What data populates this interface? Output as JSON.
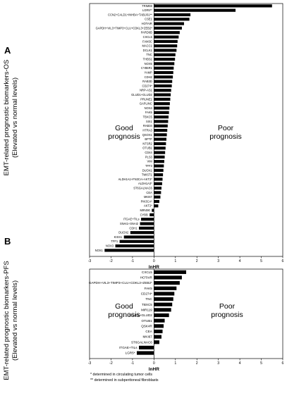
{
  "panels": {
    "a": {
      "letter": "A",
      "ylabel_line1": "EMT-related prognostic biomarkers-OS",
      "ylabel_line2": "(Elevated vs normal levels)"
    },
    "b": {
      "letter": "B",
      "ylabel_line1": "EMT-related prognostic biomarkers-PFS",
      "ylabel_line2": "(Elevated vs normal levels)"
    }
  },
  "footnotes": [
    "* determined in circulating tumor cells",
    "** determined in subperitoneal fibroblasts"
  ],
  "chart_data": [
    {
      "type": "bar",
      "orientation": "horizontal",
      "xlabel": "lnHR",
      "ylabel": "EMT-related prognostic biomarkers-OS (Elevated vs normal levels)",
      "xlim": [
        -3,
        6
      ],
      "xticks": [
        -3,
        -2,
        -1,
        0,
        1,
        2,
        3,
        4,
        5,
        6
      ],
      "annotations": {
        "left": [
          "Good",
          "prognosis"
        ],
        "right": [
          "Poor",
          "prognosis"
        ]
      },
      "categories": [
        "TRIM59",
        "LGR5**",
        "CCN2+CALD1+INHBA+TAB1/61**",
        "CSE1",
        "HOTAIR",
        "GAPDH+VIL3+TIMP3+CLU+CDKL3+ZEB2*",
        "PARD6B",
        "CXCL5",
        "FAM3C",
        "MACC1",
        "DCLK1",
        "TNC",
        "THBS1",
        "NOX5",
        "CYB5R1",
        "YAMP",
        "CDH2",
        "RAB3D",
        "CD274*",
        "NRP-AS1",
        "GLUD1+GLUD2",
        "PRUNE1",
        "GAPLINC",
        "NOX4",
        "FAK5",
        "TBXC5",
        "SIX1",
        "RAB34",
        "HTRA3",
        "QSOX1",
        "BPTF",
        "NTSR2",
        "OTUB1",
        "CD44",
        "PLS3",
        "VIM",
        "TFF3",
        "DUOX1",
        "TWIST1",
        "ALDH1A1+FN3CA+AKT2*",
        "ALDH1A3*",
        "ST6GALNAC6",
        "CEA",
        "MKI67",
        "PIK3CA*",
        "AKT2*",
        "MIR490",
        "CYBB",
        "ITGAE+TILs",
        "SNAI1+SNAI2",
        "CDH1",
        "DUOX2",
        "KISS1",
        "TFF1",
        "NOX3",
        "NOX1"
      ],
      "values": [
        5.5,
        3.8,
        1.7,
        1.65,
        1.4,
        1.3,
        1.2,
        1.15,
        1.1,
        1.08,
        1.05,
        1.0,
        0.98,
        0.95,
        0.92,
        0.9,
        0.88,
        0.85,
        0.83,
        0.8,
        0.78,
        0.76,
        0.74,
        0.72,
        0.7,
        0.68,
        0.66,
        0.64,
        0.62,
        0.6,
        0.58,
        0.56,
        0.54,
        0.52,
        0.5,
        0.48,
        0.46,
        0.44,
        0.42,
        0.4,
        0.38,
        0.35,
        0.33,
        0.3,
        0.25,
        0.2,
        -0.1,
        -0.2,
        -0.6,
        -0.65,
        -0.7,
        -1.1,
        -1.4,
        -1.6,
        -1.8,
        -2.3
      ]
    },
    {
      "type": "bar",
      "orientation": "horizontal",
      "xlabel": "lnHR",
      "ylabel": "EMT-related prognostic biomarkers-PFS (Elevated vs normal levels)",
      "xlim": [
        -3,
        6
      ],
      "xticks": [
        -3,
        -2,
        -1,
        0,
        1,
        2,
        3,
        4,
        5,
        6
      ],
      "annotations": {
        "left": [
          "Good",
          "prognosis"
        ],
        "right": [
          "Poor",
          "prognosis"
        ]
      },
      "categories": [
        "CXCL5",
        "HOTAIR",
        "GAPDH+VIL3+TIMP3+CLU+CDKL3+ZEB2*",
        "FAK5",
        "CD274*",
        "TNC",
        "TBXC5",
        "MIR119",
        "GLUD1+GLUD2",
        "OTUB1",
        "QSK4R",
        "CEA",
        "MKI67",
        "ST6GALNAC6",
        "ITGAE+TILs",
        "LGR5*"
      ],
      "values": [
        1.5,
        1.3,
        1.2,
        1.05,
        0.95,
        0.9,
        0.85,
        0.8,
        0.7,
        0.5,
        0.45,
        0.4,
        0.35,
        0.25,
        -0.7,
        -0.8
      ]
    }
  ]
}
